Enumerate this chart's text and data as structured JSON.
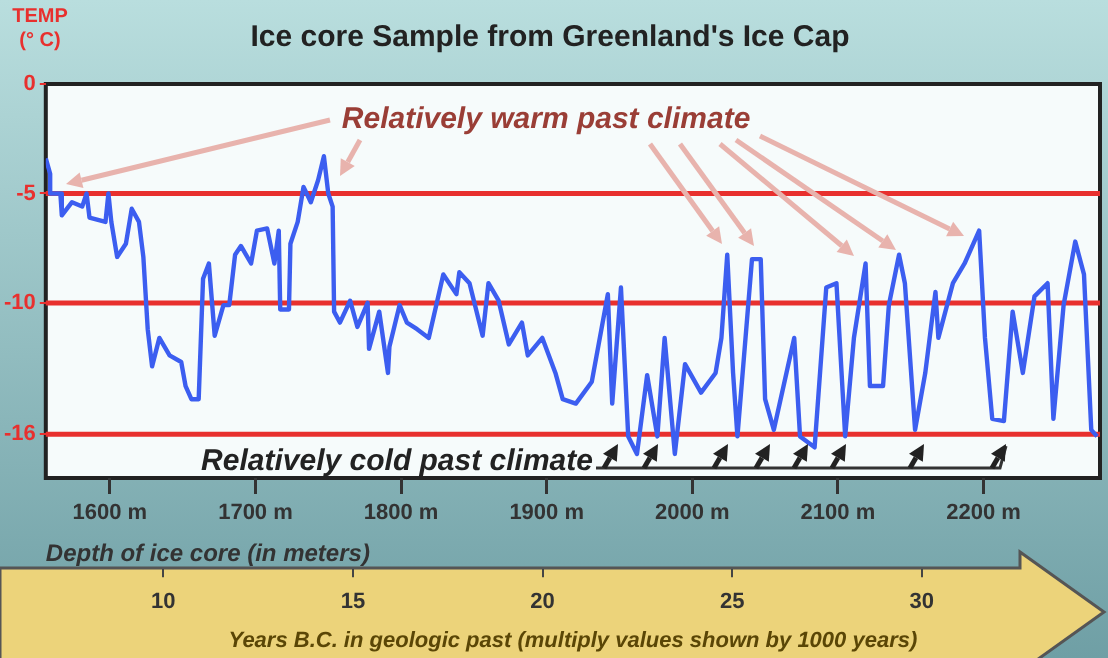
{
  "chart_data": {
    "type": "line",
    "title": "Ice core Sample from Greenland's Ice Cap",
    "ylabel": "TEMP (° C)",
    "xlabel": "Depth of ice core (in meters)",
    "x2label": "Years B.C. in geologic past (multiply values shown by 1000 years)",
    "annotations": [
      "Relatively warm past climate",
      {
        "text": "Relatively cold past climate",
        "x": 1962,
        "y": -16.9
      }
    ],
    "x": [
      1556,
      1559,
      1559,
      1566,
      1567,
      1574,
      1581,
      1584,
      1586,
      1597,
      1599,
      1601,
      1605,
      1611,
      1615,
      1620,
      1623,
      1626,
      1629,
      1634,
      1641,
      1649,
      1652,
      1656,
      1661,
      1664,
      1668,
      1672,
      1678,
      1682,
      1686,
      1690,
      1697,
      1701,
      1708,
      1713,
      1716,
      1717,
      1723,
      1724,
      1729,
      1733,
      1738,
      1743,
      1747,
      1750,
      1753,
      1754,
      1758,
      1765,
      1770,
      1777,
      1778,
      1785,
      1791,
      1792,
      1799,
      1804,
      1811,
      1819,
      1829,
      1838,
      1840,
      1847,
      1856,
      1860,
      1867,
      1874,
      1883,
      1887,
      1897,
      1906,
      1911,
      1920,
      1931,
      1942,
      1945,
      1951,
      1956,
      1962,
      1969,
      1976,
      1981,
      1988,
      1995,
      2006,
      2016,
      2020,
      2024,
      2028,
      2031,
      2041,
      2047,
      2050,
      2056,
      2070,
      2074,
      2084,
      2092,
      2099,
      2105,
      2111,
      2119,
      2122,
      2131,
      2135,
      2142,
      2146,
      2153,
      2160,
      2167,
      2169,
      2179,
      2187,
      2197,
      2201,
      2206,
      2214,
      2220,
      2227,
      2235,
      2244,
      2248,
      2255,
      2263,
      2269,
      2274,
      2278
    ],
    "series": [
      {
        "color": "#3c5ef0",
        "values": [
          -3.4,
          -4.1,
          -5.0,
          -5.0,
          -6.0,
          -5.4,
          -5.6,
          -5.0,
          -6.1,
          -6.3,
          -5.0,
          -6.3,
          -7.9,
          -7.3,
          -5.7,
          -6.3,
          -7.9,
          -11.2,
          -12.9,
          -11.6,
          -12.4,
          -12.7,
          -13.8,
          -14.4,
          -14.4,
          -8.9,
          -8.2,
          -11.5,
          -10.1,
          -10.1,
          -7.8,
          -7.4,
          -8.2,
          -6.7,
          -6.6,
          -8.2,
          -6.7,
          -10.3,
          -10.3,
          -7.3,
          -6.3,
          -4.7,
          -5.4,
          -4.4,
          -3.3,
          -5.0,
          -5.6,
          -10.4,
          -10.9,
          -9.9,
          -11.1,
          -10.0,
          -12.1,
          -10.4,
          -13.2,
          -12.0,
          -10.1,
          -10.9,
          -11.2,
          -11.6,
          -8.7,
          -9.6,
          -8.6,
          -9.1,
          -11.5,
          -9.1,
          -9.9,
          -11.9,
          -10.9,
          -12.4,
          -11.6,
          -13.2,
          -14.4,
          -14.6,
          -13.6,
          -9.6,
          -14.6,
          -9.3,
          -16.1,
          -16.9,
          -13.3,
          -16.1,
          -11.6,
          -16.9,
          -12.8,
          -14.1,
          -13.2,
          -11.6,
          -7.8,
          -13.2,
          -16.1,
          -8.0,
          -8.0,
          -14.4,
          -15.8,
          -11.6,
          -16.1,
          -16.6,
          -9.3,
          -9.1,
          -16.1,
          -11.6,
          -8.2,
          -13.8,
          -13.8,
          -10.1,
          -7.8,
          -9.1,
          -15.8,
          -13.2,
          -9.5,
          -11.6,
          -9.1,
          -8.2,
          -6.7,
          -11.6,
          -15.3,
          -15.4,
          -10.4,
          -13.2,
          -9.7,
          -9.1,
          -15.3,
          -10.1,
          -7.2,
          -8.7,
          -15.8,
          -16.1
        ]
      }
    ],
    "xlim": [
      1556,
      2280
    ],
    "xticks": [
      {
        "value": 1600,
        "label": "1600 m"
      },
      {
        "value": 1700,
        "label": "1700 m"
      },
      {
        "value": 1800,
        "label": "1800 m"
      },
      {
        "value": 1900,
        "label": "1900 m"
      },
      {
        "value": 2000,
        "label": "2000 m"
      },
      {
        "value": 2100,
        "label": "2100 m"
      },
      {
        "value": 2200,
        "label": "2200 m"
      }
    ],
    "x2lim": [
      6.9,
      34.7
    ],
    "x2ticks": [
      10,
      15,
      20,
      25,
      30
    ],
    "ylim": [
      -18,
      0
    ],
    "yticks": [
      0,
      -5,
      -10,
      -16
    ],
    "ref_lines": [
      {
        "axis": "y",
        "value": -5,
        "color": "#e8302e"
      },
      {
        "axis": "y",
        "value": -10,
        "color": "#e8302e"
      },
      {
        "axis": "y",
        "value": -16,
        "color": "#e8302e"
      }
    ],
    "marker": "none"
  }
}
